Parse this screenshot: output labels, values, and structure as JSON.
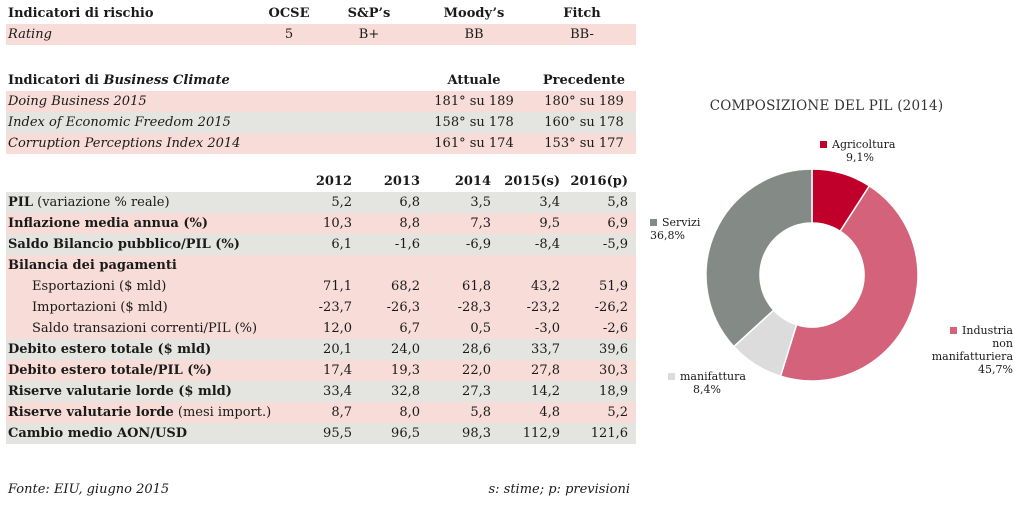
{
  "risk": {
    "headers": [
      "Indicatori di rischio",
      "OCSE",
      "S&P’s",
      "Moody’s",
      "Fitch"
    ],
    "rows": [
      [
        "Rating",
        "5",
        "B+",
        "BB",
        "BB-"
      ]
    ]
  },
  "business": {
    "title_prefix": "Indicatori di",
    "title_italic": "Business Climate",
    "col_current": "Attuale",
    "col_previous": "Precedente",
    "rows": [
      [
        "Doing Business 2015",
        "181° su 189",
        "180° su 189"
      ],
      [
        "Index of Economic Freedom 2015",
        "158° su 178",
        "160° su 178"
      ],
      [
        "Corruption Perceptions Index 2014",
        "161° su 174",
        "153° su 177"
      ]
    ]
  },
  "economy": {
    "years": [
      "2012",
      "2013",
      "2014",
      "2015(s)",
      "2016(p)"
    ],
    "rows": [
      {
        "label": "PIL (variazione % reale)",
        "label_bold": "PIL",
        "label_rest": " (variazione % reale)",
        "values": [
          "5,2",
          "6,8",
          "3,5",
          "3,4",
          "5,8"
        ]
      },
      {
        "label": "Inflazione media annua (%)",
        "values": [
          "10,3",
          "8,8",
          "7,3",
          "9,5",
          "6,9"
        ]
      },
      {
        "label": "Saldo Bilancio pubblico/PIL (%)",
        "values": [
          "6,1",
          "-1,6",
          "-6,9",
          "-8,4",
          "-5,9"
        ]
      },
      {
        "label": "Bilancia dei pagamenti",
        "values": [
          "",
          "",
          "",
          "",
          ""
        ]
      },
      {
        "label": "Esportazioni ($ mld)",
        "values": [
          "71,1",
          "68,2",
          "61,8",
          "43,2",
          "51,9"
        ]
      },
      {
        "label": "Importazioni ($ mld)",
        "values": [
          "-23,7",
          "-26,3",
          "-28,3",
          "-23,2",
          "-26,2"
        ]
      },
      {
        "label": "Saldo transazioni correnti/PIL (%)",
        "values": [
          "12,0",
          "6,7",
          "0,5",
          "-3,0",
          "-2,6"
        ]
      },
      {
        "label": "Debito estero totale ($ mld)",
        "values": [
          "20,1",
          "24,0",
          "28,6",
          "33,7",
          "39,6"
        ]
      },
      {
        "label": "Debito estero totale/PIL (%)",
        "values": [
          "17,4",
          "19,3",
          "22,0",
          "27,8",
          "30,3"
        ]
      },
      {
        "label": "Riserve valutarie lorde ($ mld)",
        "values": [
          "33,4",
          "32,8",
          "27,3",
          "14,2",
          "18,9"
        ]
      },
      {
        "label": "Riserve valutarie lorde (mesi import.)",
        "label_bold": "Riserve valutarie lorde",
        "label_rest": " (mesi import.)",
        "values": [
          "8,7",
          "8,0",
          "5,8",
          "4,8",
          "5,2"
        ]
      },
      {
        "label": "Cambio medio AON/USD",
        "values": [
          "95,5",
          "96,5",
          "98,3",
          "112,9",
          "121,6"
        ]
      }
    ]
  },
  "footer": {
    "source": "Fonte: EIU, giugno 2015",
    "note": "s: stime; p: previsioni"
  },
  "chart_data": {
    "type": "pie",
    "title": "COMPOSIZIONE DEL PIL (2014)",
    "slices": [
      {
        "label": "Agricoltura",
        "value": 9.1,
        "value_label": "9,1%",
        "color": "#c0002a"
      },
      {
        "label": "Industria non manifatturiera",
        "label_lines": [
          "Industria non",
          "manifatturiera"
        ],
        "value": 45.7,
        "value_label": "45,7%",
        "color": "#d4627a"
      },
      {
        "label": "manifattura",
        "value": 8.4,
        "value_label": "8,4%",
        "color": "#dcdcdc"
      },
      {
        "label": "Servizi",
        "value": 36.8,
        "value_label": "36,8%",
        "color": "#848a86"
      }
    ],
    "donut": true
  }
}
